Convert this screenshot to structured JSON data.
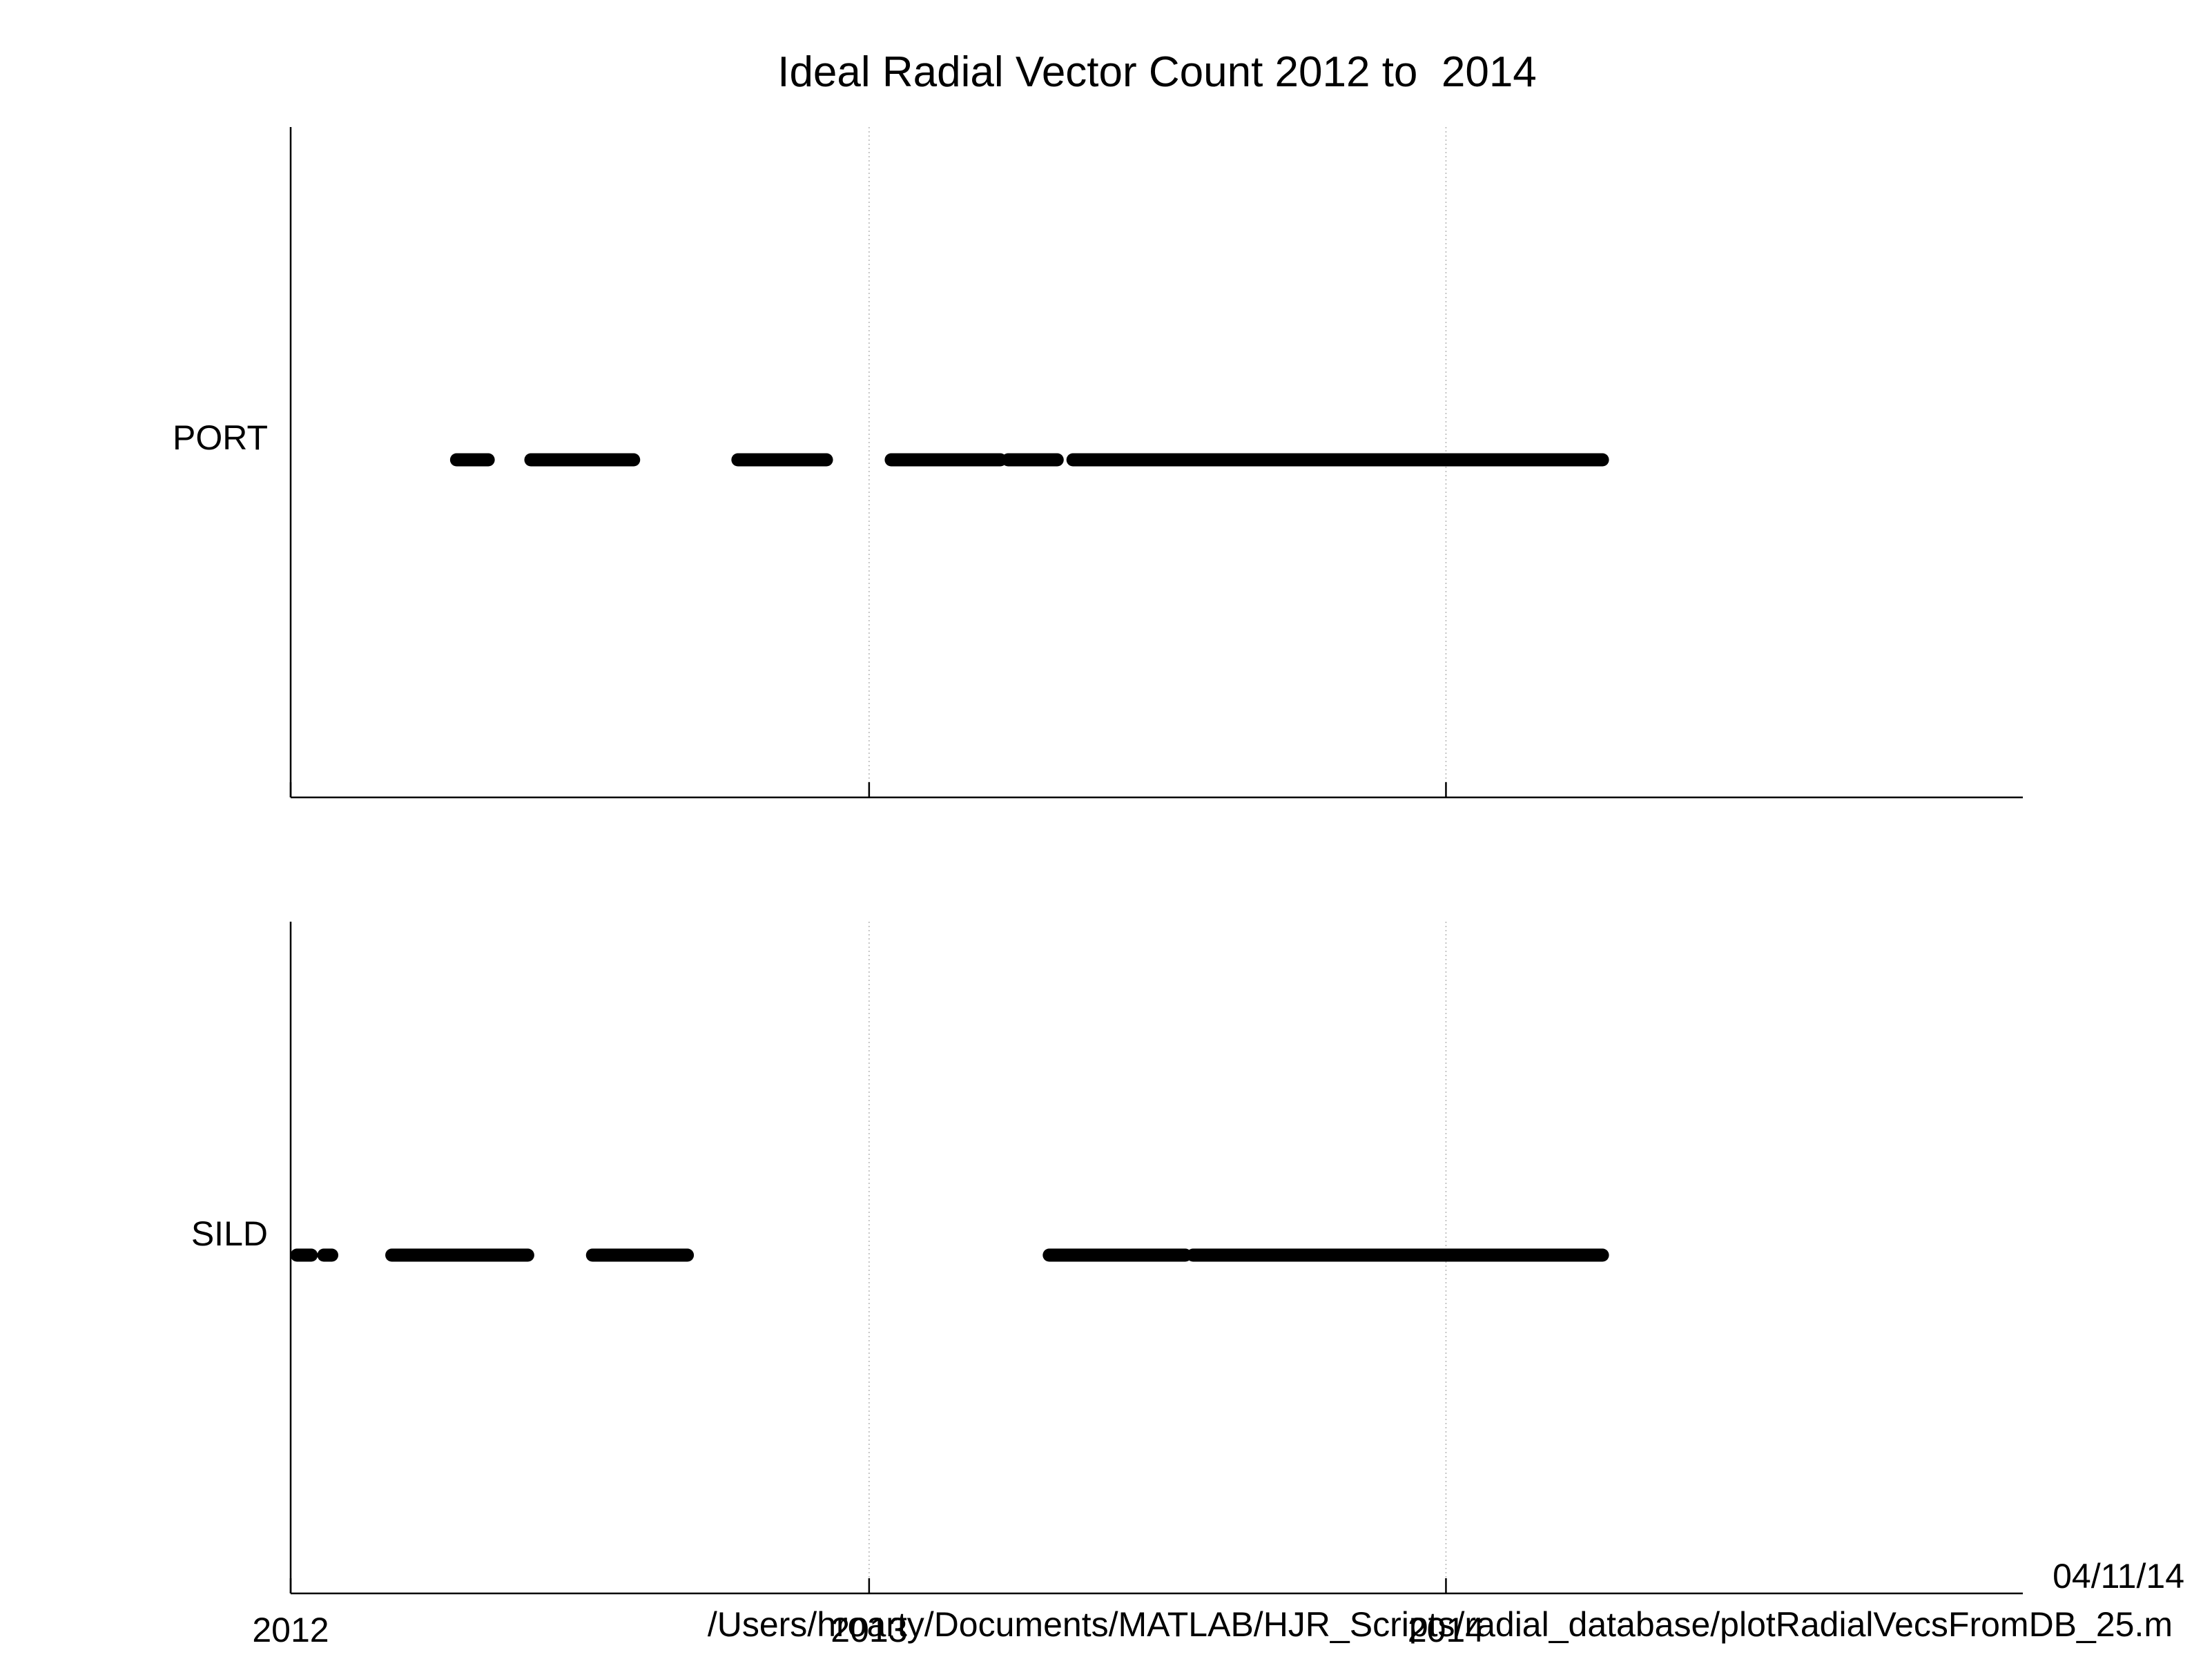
{
  "figure": {
    "title": "Ideal Radial Vector Count 2012 to  2014",
    "footer_path": "/Users/hroarty/Documents/MATLAB/HJR_Scripts/radial_database/plotRadialVecsFromDB_25.m",
    "footer_date": "04/11/14",
    "colors": {
      "background": "#ffffff",
      "axes": "#000000",
      "grid": "#b4b4b4",
      "marker": "#000000"
    }
  },
  "chart_data": [
    {
      "type": "scatter",
      "panel": "top",
      "category_label": "PORT",
      "xlim": [
        "2012-01-01",
        "2015-01-01"
      ],
      "x_ticks": [
        "2012-01-01",
        "2013-01-01",
        "2014-01-01"
      ],
      "x_tick_labels": [],
      "grid": "x-major",
      "coverage_segments": [
        [
          "2012-04-15",
          "2012-05-05"
        ],
        [
          "2012-06-01",
          "2012-08-05"
        ],
        [
          "2012-10-10",
          "2012-12-05"
        ],
        [
          "2013-01-15",
          "2013-03-25"
        ],
        [
          "2013-03-30",
          "2013-04-30"
        ],
        [
          "2013-05-10",
          "2014-04-10"
        ]
      ]
    },
    {
      "type": "scatter",
      "panel": "bottom",
      "category_label": "SILD",
      "xlim": [
        "2012-01-01",
        "2015-01-01"
      ],
      "x_ticks": [
        "2012-01-01",
        "2013-01-01",
        "2014-01-01"
      ],
      "x_tick_labels": [
        "2012",
        "2013",
        "2014"
      ],
      "grid": "x-major",
      "coverage_segments": [
        [
          "2012-01-05",
          "2012-01-14"
        ],
        [
          "2012-01-22",
          "2012-01-27"
        ],
        [
          "2012-03-05",
          "2012-05-30"
        ],
        [
          "2012-07-10",
          "2012-09-08"
        ],
        [
          "2013-04-25",
          "2013-07-20"
        ],
        [
          "2013-07-25",
          "2014-04-10"
        ]
      ]
    }
  ]
}
